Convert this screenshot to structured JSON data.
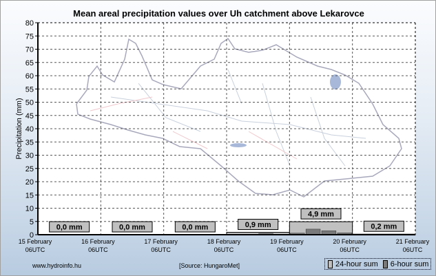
{
  "chart_data": {
    "type": "bar",
    "title": "Mean areal precipitation values over Uh catchment above Lekarovce",
    "ylabel": "Precipitation (mm)",
    "xlabel": "",
    "ylim": [
      0,
      80
    ],
    "yticks": [
      0,
      5,
      10,
      15,
      20,
      25,
      30,
      35,
      40,
      45,
      50,
      55,
      60,
      65,
      70,
      75,
      80
    ],
    "grid": true,
    "x_ticks": [
      {
        "day": "15 February",
        "time": "06UTC"
      },
      {
        "day": "16 February",
        "time": "06UTC"
      },
      {
        "day": "17 February",
        "time": "06UTC"
      },
      {
        "day": "18 February",
        "time": "06UTC"
      },
      {
        "day": "19 February",
        "time": "06UTC"
      },
      {
        "day": "20 February",
        "time": "06UTC"
      },
      {
        "day": "21 February",
        "time": "06UTC"
      }
    ],
    "series": [
      {
        "name": "24-hour sum",
        "values": [
          0.0,
          0.0,
          0.0,
          0.9,
          4.9,
          0.2
        ],
        "labels": [
          "0,0 mm",
          "0,0 mm",
          "0,0 mm",
          "0,9 mm",
          "4,9 mm",
          "0,2 mm"
        ],
        "color": "#c0c0c0"
      },
      {
        "name": "6-hour sum",
        "values": [
          0,
          0,
          0,
          0,
          0,
          0,
          0,
          0,
          0,
          0,
          0,
          0,
          0.1,
          0.1,
          0.5,
          0.2,
          0.6,
          2.1,
          1.5,
          0.7,
          0.1,
          0.1,
          0,
          0
        ],
        "color": "#7a7a7a"
      }
    ],
    "legend": "bottom-right"
  },
  "footer": {
    "website": "www.hydroinfo.hu",
    "source": "[Source: HungaroMet]"
  },
  "colors": {
    "bar24": "#c0c0c0",
    "bar6": "#7a7a7a",
    "map_outline": "#a8a8bc"
  }
}
